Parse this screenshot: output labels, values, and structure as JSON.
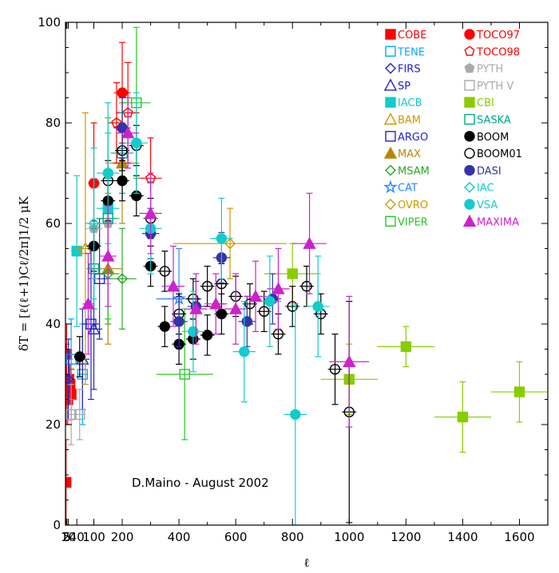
{
  "chart_data": {
    "type": "scatter",
    "title": "",
    "xlabel": "ℓ",
    "ylabel": "δT = [ℓ(ℓ+1)Cℓ/2π]1/2 μK",
    "xlim": [
      0,
      1700
    ],
    "ylim": [
      0,
      100
    ],
    "x_ticks": [
      {
        "v": 2,
        "label": "2"
      },
      {
        "v": 5,
        "label": "5"
      },
      {
        "v": 10,
        "label": "10"
      },
      {
        "v": 40,
        "label": "40"
      },
      {
        "v": 100,
        "label": "100"
      },
      {
        "v": 200,
        "label": "200"
      },
      {
        "v": 400,
        "label": "400"
      },
      {
        "v": 600,
        "label": "600"
      },
      {
        "v": 800,
        "label": "800"
      },
      {
        "v": 1000,
        "label": "1000"
      },
      {
        "v": 1200,
        "label": "1200"
      },
      {
        "v": 1400,
        "label": "1400"
      },
      {
        "v": 1600,
        "label": "1600"
      }
    ],
    "y_ticks": [
      0,
      20,
      40,
      60,
      80,
      100
    ],
    "annotation": "D.Maino - August 2002",
    "legend_position": "top-right",
    "series": [
      {
        "name": "COBE",
        "color": "#ff0000",
        "marker": "square-filled",
        "points": [
          {
            "x": 2,
            "y": 8.5,
            "xerr": 0,
            "yerr": 8.5
          },
          {
            "x": 3,
            "y": 28,
            "xerr": 1,
            "yerr": 8
          },
          {
            "x": 4,
            "y": 34,
            "xerr": 1,
            "yerr": 6
          },
          {
            "x": 8,
            "y": 25,
            "xerr": 3,
            "yerr": 5
          },
          {
            "x": 12,
            "y": 29,
            "xerr": 3,
            "yerr": 4
          },
          {
            "x": 16,
            "y": 28,
            "xerr": 3,
            "yerr": 4
          },
          {
            "x": 20,
            "y": 26,
            "xerr": 3,
            "yerr": 5
          }
        ]
      },
      {
        "name": "TENE",
        "color": "#00aaff",
        "marker": "square-open",
        "points": [
          {
            "x": 20,
            "y": 33,
            "xerr": 6,
            "yerr": 8
          },
          {
            "x": 60,
            "y": 30,
            "xerr": 15,
            "yerr": 10
          }
        ]
      },
      {
        "name": "FIRS",
        "color": "#2222cc",
        "marker": "diamond-open",
        "points": [
          {
            "x": 10,
            "y": 29,
            "xerr": 8,
            "yerr": 8
          }
        ]
      },
      {
        "name": "SP",
        "color": "#2222cc",
        "marker": "triangle-open",
        "points": [
          {
            "x": 60,
            "y": 33,
            "xerr": 25,
            "yerr": 10
          },
          {
            "x": 100,
            "y": 39,
            "xerr": 30,
            "yerr": 12
          }
        ]
      },
      {
        "name": "IACB",
        "color": "#11cccc",
        "marker": "square-filled",
        "points": [
          {
            "x": 40,
            "y": 54.5,
            "xerr": 20,
            "yerr": 15
          },
          {
            "x": 150,
            "y": 63,
            "xerr": 40,
            "yerr": 15
          }
        ]
      },
      {
        "name": "BAM",
        "color": "#cc9900",
        "marker": "triangle-open",
        "points": [
          {
            "x": 70,
            "y": 55,
            "xerr": 35,
            "yerr": 27
          }
        ]
      },
      {
        "name": "ARGO",
        "color": "#2222cc",
        "marker": "square-open",
        "points": [
          {
            "x": 90,
            "y": 40,
            "xerr": 30,
            "yerr": 15
          },
          {
            "x": 120,
            "y": 49,
            "xerr": 40,
            "yerr": 12
          }
        ]
      },
      {
        "name": "MAX",
        "color": "#b8860b",
        "marker": "triangle-filled",
        "points": [
          {
            "x": 150,
            "y": 51,
            "xerr": 50,
            "yerr": 15
          },
          {
            "x": 200,
            "y": 72,
            "xerr": 60,
            "yerr": 12
          }
        ]
      },
      {
        "name": "MSAM",
        "color": "#22aa22",
        "marker": "diamond-open",
        "points": [
          {
            "x": 150,
            "y": 50,
            "xerr": 40,
            "yerr": 10
          },
          {
            "x": 200,
            "y": 49,
            "xerr": 50,
            "yerr": 10
          }
        ]
      },
      {
        "name": "CAT",
        "color": "#2288ff",
        "marker": "star-open",
        "points": [
          {
            "x": 400,
            "y": 45,
            "xerr": 80,
            "yerr": 10
          }
        ]
      },
      {
        "name": "OVRO",
        "color": "#cc9900",
        "marker": "diamond-open",
        "points": [
          {
            "x": 580,
            "y": 56,
            "xerr": 200,
            "yerr": 7
          }
        ]
      },
      {
        "name": "VIPER",
        "color": "#22cc22",
        "marker": "square-open",
        "points": [
          {
            "x": 150,
            "y": 61,
            "xerr": 40,
            "yerr": 20
          },
          {
            "x": 250,
            "y": 84,
            "xerr": 50,
            "yerr": 15
          },
          {
            "x": 420,
            "y": 30,
            "xerr": 100,
            "yerr": 13
          }
        ]
      },
      {
        "name": "TOCO97",
        "color": "#ff0000",
        "marker": "circle-filled",
        "points": [
          {
            "x": 100,
            "y": 68,
            "xerr": 20,
            "yerr": 12
          },
          {
            "x": 200,
            "y": 86,
            "xerr": 30,
            "yerr": 10
          }
        ]
      },
      {
        "name": "TOCO98",
        "color": "#ff0000",
        "marker": "pentagon-open",
        "points": [
          {
            "x": 180,
            "y": 80,
            "xerr": 30,
            "yerr": 8
          },
          {
            "x": 220,
            "y": 82,
            "xerr": 40,
            "yerr": 10
          },
          {
            "x": 300,
            "y": 69,
            "xerr": 40,
            "yerr": 8
          }
        ]
      },
      {
        "name": "PYTH",
        "color": "#aaaaaa",
        "marker": "pentagon-filled",
        "points": [
          {
            "x": 100,
            "y": 59,
            "xerr": 30,
            "yerr": 10
          },
          {
            "x": 150,
            "y": 60,
            "xerr": 30,
            "yerr": 12
          }
        ]
      },
      {
        "name": "PYTH V",
        "color": "#aaaaaa",
        "marker": "square-open",
        "points": [
          {
            "x": 20,
            "y": 22,
            "xerr": 10,
            "yerr": 6
          },
          {
            "x": 50,
            "y": 22,
            "xerr": 20,
            "yerr": 5
          }
        ]
      },
      {
        "name": "CBI",
        "color": "#88cc00",
        "marker": "square-filled",
        "points": [
          {
            "x": 800,
            "y": 50,
            "xerr": 100,
            "yerr": 6
          },
          {
            "x": 1000,
            "y": 29,
            "xerr": 100,
            "yerr": 7
          },
          {
            "x": 1200,
            "y": 35.5,
            "xerr": 100,
            "yerr": 4
          },
          {
            "x": 1400,
            "y": 21.5,
            "xerr": 100,
            "yerr": 7
          },
          {
            "x": 1600,
            "y": 26.5,
            "xerr": 100,
            "yerr": 6
          }
        ]
      },
      {
        "name": "SASKA",
        "color": "#00aa88",
        "marker": "square-open",
        "points": [
          {
            "x": 100,
            "y": 51,
            "xerr": 25,
            "yerr": 8
          },
          {
            "x": 150,
            "y": 61,
            "xerr": 30,
            "yerr": 8
          },
          {
            "x": 200,
            "y": 74,
            "xerr": 40,
            "yerr": 8
          }
        ]
      },
      {
        "name": "BOOM",
        "color": "#000000",
        "marker": "circle-filled",
        "points": [
          {
            "x": 50,
            "y": 33.5,
            "xerr": 20,
            "yerr": 4
          },
          {
            "x": 100,
            "y": 55.5,
            "xerr": 25,
            "yerr": 5
          },
          {
            "x": 150,
            "y": 64.5,
            "xerr": 25,
            "yerr": 4
          },
          {
            "x": 200,
            "y": 68.5,
            "xerr": 25,
            "yerr": 4
          },
          {
            "x": 250,
            "y": 65.5,
            "xerr": 25,
            "yerr": 4
          },
          {
            "x": 300,
            "y": 51.5,
            "xerr": 25,
            "yerr": 4
          },
          {
            "x": 350,
            "y": 39.5,
            "xerr": 25,
            "yerr": 4
          },
          {
            "x": 400,
            "y": 36,
            "xerr": 25,
            "yerr": 4
          },
          {
            "x": 450,
            "y": 37,
            "xerr": 25,
            "yerr": 4
          },
          {
            "x": 500,
            "y": 37.8,
            "xerr": 25,
            "yerr": 4
          },
          {
            "x": 550,
            "y": 42,
            "xerr": 25,
            "yerr": 4
          }
        ]
      },
      {
        "name": "BOOM01",
        "color": "#000000",
        "marker": "circle-open",
        "points": [
          {
            "x": 150,
            "y": 68.5,
            "xerr": 25,
            "yerr": 4
          },
          {
            "x": 200,
            "y": 74.5,
            "xerr": 25,
            "yerr": 4
          },
          {
            "x": 250,
            "y": 75.5,
            "xerr": 25,
            "yerr": 4
          },
          {
            "x": 300,
            "y": 61,
            "xerr": 25,
            "yerr": 4
          },
          {
            "x": 350,
            "y": 50.5,
            "xerr": 25,
            "yerr": 4
          },
          {
            "x": 400,
            "y": 42,
            "xerr": 25,
            "yerr": 4
          },
          {
            "x": 450,
            "y": 45,
            "xerr": 25,
            "yerr": 4
          },
          {
            "x": 500,
            "y": 47.5,
            "xerr": 25,
            "yerr": 4
          },
          {
            "x": 550,
            "y": 48,
            "xerr": 25,
            "yerr": 4
          },
          {
            "x": 600,
            "y": 45.5,
            "xerr": 25,
            "yerr": 4
          },
          {
            "x": 650,
            "y": 44,
            "xerr": 25,
            "yerr": 4
          },
          {
            "x": 700,
            "y": 42.5,
            "xerr": 25,
            "yerr": 4
          },
          {
            "x": 750,
            "y": 38,
            "xerr": 25,
            "yerr": 4
          },
          {
            "x": 800,
            "y": 43.5,
            "xerr": 25,
            "yerr": 4
          },
          {
            "x": 850,
            "y": 47.5,
            "xerr": 25,
            "yerr": 4
          },
          {
            "x": 900,
            "y": 42,
            "xerr": 25,
            "yerr": 4
          },
          {
            "x": 950,
            "y": 31,
            "xerr": 25,
            "yerr": 7
          },
          {
            "x": 1000,
            "y": 22.5,
            "xerr": 25,
            "yerr": 22
          }
        ]
      },
      {
        "name": "DASI",
        "color": "#3333aa",
        "marker": "circle-filled",
        "points": [
          {
            "x": 200,
            "y": 79,
            "xerr": 30,
            "yerr": 6
          },
          {
            "x": 300,
            "y": 58,
            "xerr": 30,
            "yerr": 5
          },
          {
            "x": 400,
            "y": 40.5,
            "xerr": 30,
            "yerr": 5
          },
          {
            "x": 460,
            "y": 43.5,
            "xerr": 30,
            "yerr": 5
          },
          {
            "x": 550,
            "y": 53.2,
            "xerr": 30,
            "yerr": 5
          },
          {
            "x": 640,
            "y": 40.5,
            "xerr": 30,
            "yerr": 5
          },
          {
            "x": 730,
            "y": 45,
            "xerr": 30,
            "yerr": 5
          }
        ]
      },
      {
        "name": "IAC",
        "color": "#11cccc",
        "marker": "diamond-open",
        "points": [
          {
            "x": 100,
            "y": 60,
            "xerr": 30,
            "yerr": 15
          }
        ]
      },
      {
        "name": "VSA",
        "color": "#11cccc",
        "marker": "circle-filled",
        "points": [
          {
            "x": 150,
            "y": 70,
            "xerr": 40,
            "yerr": 14
          },
          {
            "x": 250,
            "y": 76,
            "xerr": 40,
            "yerr": 10
          },
          {
            "x": 300,
            "y": 59,
            "xerr": 40,
            "yerr": 9
          },
          {
            "x": 450,
            "y": 38.5,
            "xerr": 40,
            "yerr": 8
          },
          {
            "x": 550,
            "y": 57,
            "xerr": 40,
            "yerr": 8
          },
          {
            "x": 630,
            "y": 34.5,
            "xerr": 40,
            "yerr": 10
          },
          {
            "x": 720,
            "y": 44.5,
            "xerr": 40,
            "yerr": 9
          },
          {
            "x": 810,
            "y": 22,
            "xerr": 40,
            "yerr": 22
          },
          {
            "x": 890,
            "y": 43.5,
            "xerr": 40,
            "yerr": 10
          }
        ]
      },
      {
        "name": "MAXIMA",
        "color": "#cc22cc",
        "marker": "triangle-filled",
        "points": [
          {
            "x": 80,
            "y": 44,
            "xerr": 20,
            "yerr": 10
          },
          {
            "x": 150,
            "y": 53.5,
            "xerr": 30,
            "yerr": 10
          },
          {
            "x": 220,
            "y": 78,
            "xerr": 40,
            "yerr": 7
          },
          {
            "x": 300,
            "y": 62,
            "xerr": 40,
            "yerr": 8
          },
          {
            "x": 380,
            "y": 47.5,
            "xerr": 40,
            "yerr": 8
          },
          {
            "x": 460,
            "y": 43,
            "xerr": 40,
            "yerr": 7
          },
          {
            "x": 530,
            "y": 44,
            "xerr": 40,
            "yerr": 6
          },
          {
            "x": 600,
            "y": 43,
            "xerr": 40,
            "yerr": 7
          },
          {
            "x": 670,
            "y": 45.5,
            "xerr": 40,
            "yerr": 7
          },
          {
            "x": 750,
            "y": 47,
            "xerr": 40,
            "yerr": 8
          },
          {
            "x": 860,
            "y": 56,
            "xerr": 60,
            "yerr": 10
          },
          {
            "x": 1000,
            "y": 32.5,
            "xerr": 70,
            "yerr": 13
          }
        ]
      }
    ]
  }
}
